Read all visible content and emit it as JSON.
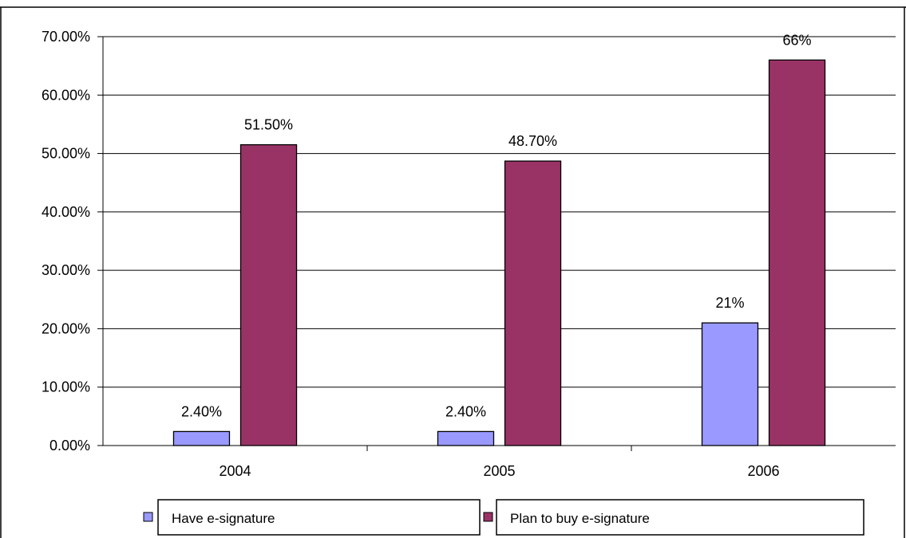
{
  "chart_data": {
    "type": "bar",
    "title": "",
    "categories": [
      "2004",
      "2005",
      "2006"
    ],
    "series": [
      {
        "name": "Have e-signature",
        "values": [
          0.024,
          0.024,
          0.21
        ],
        "labels": [
          "2.40%",
          "2.40%",
          "21%"
        ],
        "color": "#9999ff"
      },
      {
        "name": "Plan to buy e-signature",
        "values": [
          0.515,
          0.487,
          0.66
        ],
        "labels": [
          "51.50%",
          "48.70%",
          "66%"
        ],
        "color": "#993366"
      }
    ],
    "ylim": [
      0,
      0.7
    ],
    "yticks": [
      0,
      0.1,
      0.2,
      0.3,
      0.4,
      0.5,
      0.6,
      0.7
    ],
    "ytick_labels": [
      "0.00%",
      "10.00%",
      "20.00%",
      "30.00%",
      "40.00%",
      "50.00%",
      "60.00%",
      "70.00%"
    ],
    "xlabel": "",
    "ylabel": "",
    "grid": true,
    "legend": "bottom"
  }
}
